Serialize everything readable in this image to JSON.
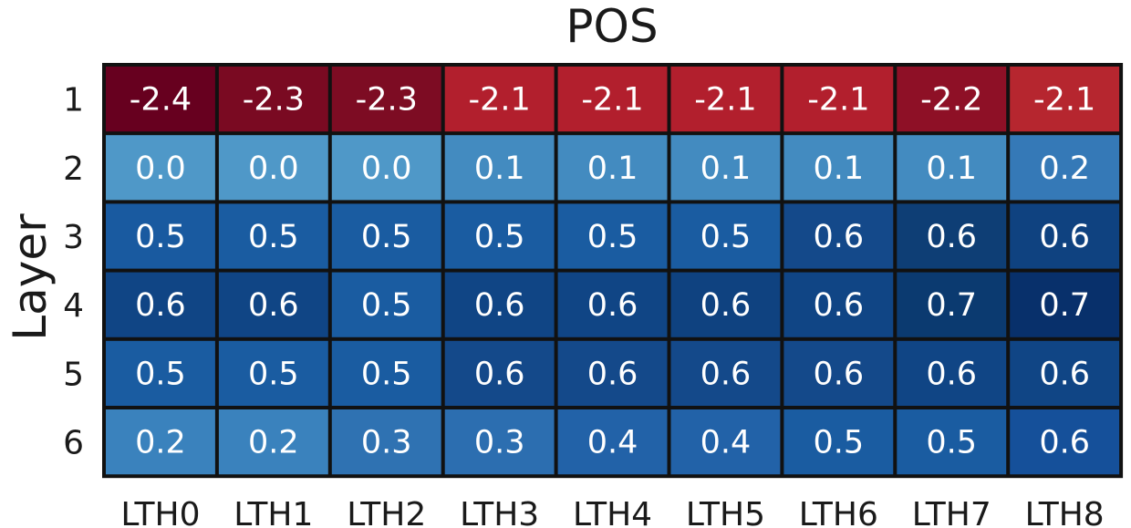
{
  "chart_data": {
    "type": "heatmap",
    "title": "POS",
    "xlabel": "",
    "ylabel": "Layer",
    "x_categories": [
      "LTH0",
      "LTH1",
      "LTH2",
      "LTH3",
      "LTH4",
      "LTH5",
      "LTH6",
      "LTH7",
      "LTH8"
    ],
    "y_categories": [
      "1",
      "2",
      "3",
      "4",
      "5",
      "6"
    ],
    "values": [
      [
        -2.4,
        -2.3,
        -2.3,
        -2.1,
        -2.1,
        -2.1,
        -2.1,
        -2.2,
        -2.1
      ],
      [
        0.0,
        0.0,
        0.0,
        0.1,
        0.1,
        0.1,
        0.1,
        0.1,
        0.2
      ],
      [
        0.5,
        0.5,
        0.5,
        0.5,
        0.5,
        0.5,
        0.6,
        0.6,
        0.6
      ],
      [
        0.6,
        0.6,
        0.5,
        0.6,
        0.6,
        0.6,
        0.6,
        0.7,
        0.7
      ],
      [
        0.5,
        0.5,
        0.5,
        0.6,
        0.6,
        0.6,
        0.6,
        0.6,
        0.6
      ],
      [
        0.2,
        0.2,
        0.3,
        0.3,
        0.4,
        0.4,
        0.5,
        0.5,
        0.6
      ]
    ],
    "value_format": "one_decimal",
    "colormap": "red-blue diverging",
    "colors": {
      "cells": [
        [
          "#67001f",
          "#7a0a22",
          "#7d0c23",
          "#b21f2d",
          "#b21f2d",
          "#b21f2d",
          "#b21f2d",
          "#8e1026",
          "#b6262f"
        ],
        [
          "#4f98c8",
          "#4f98c8",
          "#4f98c8",
          "#438bc0",
          "#438bc0",
          "#438bc0",
          "#438bc0",
          "#438bc0",
          "#3579b7"
        ],
        [
          "#195aa0",
          "#1a5ca1",
          "#1a5ca1",
          "#1a5ca1",
          "#1a5ca1",
          "#1a5ca1",
          "#14498a",
          "#0e3e75",
          "#0f4280"
        ],
        [
          "#104585",
          "#104585",
          "#1a5ca1",
          "#104585",
          "#104585",
          "#0f4280",
          "#104585",
          "#0b3a70",
          "#08306b"
        ],
        [
          "#1a5ca1",
          "#1a5ca1",
          "#1a5ca1",
          "#14498a",
          "#14498a",
          "#14498a",
          "#14498a",
          "#104585",
          "#104585"
        ],
        [
          "#3a82bd",
          "#3a82bd",
          "#2f72b2",
          "#2c6eb0",
          "#2262a8",
          "#2262a8",
          "#1a5ca1",
          "#1a5ca1",
          "#15509a"
        ]
      ],
      "grid_border": "#111111",
      "value_text": "#ffffff",
      "axis_text": "#1a1a1a"
    }
  }
}
